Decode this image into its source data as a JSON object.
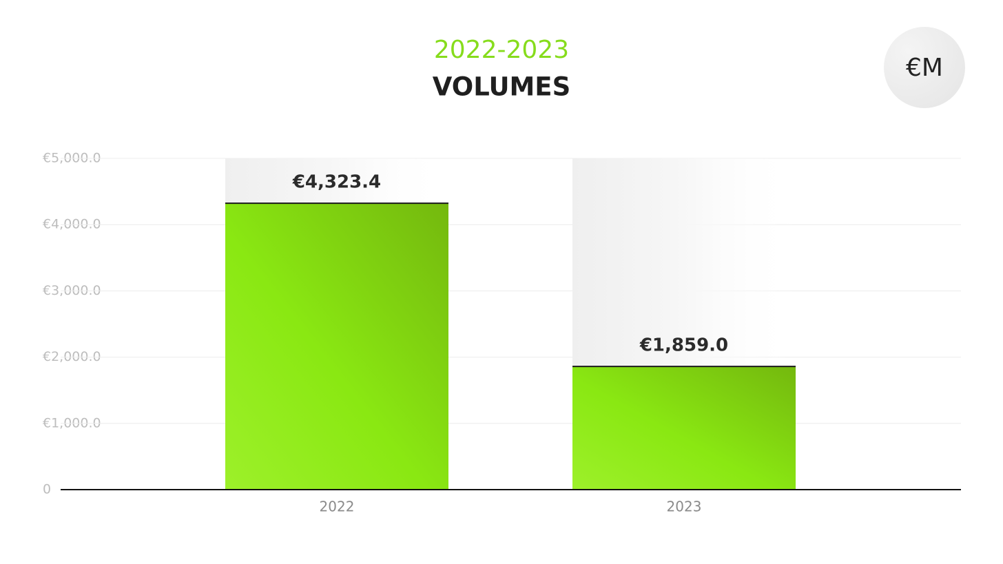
{
  "chart_data": {
    "type": "bar",
    "subtitle": "2022-2023",
    "title": "VOLUMES",
    "unit": "€M",
    "categories": [
      "2022",
      "2023"
    ],
    "values": [
      4323.4,
      1859.0
    ],
    "value_labels": [
      "€4,323.4",
      "€1,859.0"
    ],
    "color": "#8ae812",
    "ylim": [
      0,
      5000
    ],
    "yticks": [
      0,
      {
        "value": 1000,
        "label": "€1,000.0"
      },
      {
        "value": 2000,
        "label": "€2,000.0"
      },
      {
        "value": 3000,
        "label": "€3,000.0"
      },
      {
        "value": 4000,
        "label": "€4,000.0"
      },
      {
        "value": 5000,
        "label": "€5,000.0"
      }
    ],
    "grid": true
  }
}
